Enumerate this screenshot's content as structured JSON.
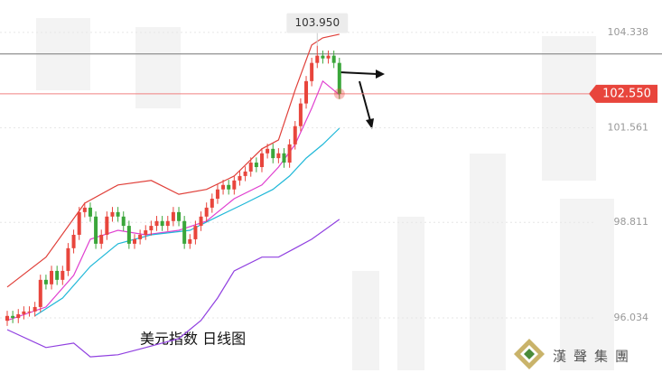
{
  "chart_data": {
    "type": "candlestick",
    "title": "美元指数  日线图",
    "logo_text": "漢聲集團",
    "ylim": [
      94.43,
      105.28
    ],
    "yticks": [
      104.338,
      101.561,
      98.811,
      96.034
    ],
    "grid": true,
    "up_color": "#e8453c",
    "down_color": "#3aa63a",
    "open": [
      95.95,
      96.09,
      96.03,
      96.14,
      96.22,
      96.22,
      96.35,
      97.14,
      97.01,
      97.4,
      97.14,
      97.4,
      98.06,
      98.45,
      99.11,
      99.24,
      98.98,
      98.19,
      98.45,
      98.98,
      99.11,
      98.98,
      98.71,
      98.19,
      98.32,
      98.45,
      98.58,
      98.71,
      98.85,
      98.71,
      98.85,
      99.11,
      98.85,
      98.19,
      98.32,
      98.71,
      98.98,
      99.24,
      99.5,
      99.77,
      99.9,
      99.77,
      100.03,
      100.16,
      100.29,
      100.55,
      100.42,
      100.82,
      100.95,
      100.68,
      100.82,
      100.55,
      101.08,
      101.61,
      102.27,
      102.92,
      103.45,
      103.66,
      103.58,
      103.66,
      103.45
    ],
    "high": [
      96.24,
      96.24,
      96.29,
      96.37,
      96.37,
      96.5,
      97.29,
      97.29,
      97.55,
      97.55,
      97.55,
      98.21,
      98.6,
      99.26,
      99.39,
      99.39,
      99.13,
      98.6,
      99.13,
      99.26,
      99.26,
      99.13,
      98.86,
      98.47,
      98.6,
      98.73,
      98.86,
      99.0,
      99.0,
      99.0,
      99.26,
      99.26,
      99.0,
      98.47,
      98.86,
      99.13,
      99.39,
      99.65,
      99.92,
      100.05,
      100.05,
      100.18,
      100.31,
      100.44,
      100.7,
      100.7,
      100.97,
      101.1,
      101.1,
      100.97,
      100.97,
      101.23,
      101.76,
      102.42,
      103.07,
      103.6,
      103.95,
      103.81,
      103.81,
      103.81,
      103.6
    ],
    "low": [
      95.8,
      95.88,
      95.88,
      95.99,
      96.07,
      96.07,
      96.2,
      96.86,
      96.86,
      96.99,
      96.99,
      97.25,
      97.91,
      98.3,
      98.96,
      98.83,
      98.04,
      98.04,
      98.3,
      98.83,
      98.83,
      98.56,
      98.04,
      98.04,
      98.17,
      98.3,
      98.43,
      98.56,
      98.56,
      98.56,
      98.7,
      98.7,
      98.04,
      98.04,
      98.17,
      98.56,
      98.83,
      99.09,
      99.35,
      99.62,
      99.62,
      99.62,
      99.88,
      100.01,
      100.14,
      100.27,
      100.27,
      100.67,
      100.53,
      100.53,
      100.4,
      100.4,
      100.93,
      101.46,
      102.12,
      102.77,
      103.3,
      103.43,
      103.43,
      103.3,
      102.4
    ],
    "close": [
      96.09,
      96.03,
      96.14,
      96.22,
      96.22,
      96.35,
      97.14,
      97.01,
      97.4,
      97.14,
      97.4,
      98.06,
      98.45,
      99.11,
      99.24,
      98.98,
      98.19,
      98.45,
      98.98,
      99.11,
      98.98,
      98.71,
      98.19,
      98.32,
      98.45,
      98.58,
      98.71,
      98.85,
      98.71,
      98.85,
      99.11,
      98.85,
      98.19,
      98.32,
      98.71,
      98.98,
      99.24,
      99.5,
      99.77,
      99.9,
      99.77,
      100.03,
      100.16,
      100.29,
      100.55,
      100.42,
      100.82,
      100.95,
      100.68,
      100.82,
      100.55,
      101.08,
      101.61,
      102.27,
      102.92,
      103.45,
      103.66,
      103.58,
      103.66,
      103.45,
      102.55
    ],
    "lines": [
      {
        "color": "#e0403a",
        "x": [
          0,
          7,
          14,
          20,
          26,
          31,
          36,
          41,
          46,
          49,
          52,
          55,
          57,
          60
        ],
        "values": [
          96.93,
          97.8,
          99.37,
          99.9,
          100.03,
          99.63,
          99.77,
          100.16,
          100.95,
          101.21,
          102.66,
          103.97,
          104.18,
          104.285
        ]
      },
      {
        "color": "#e040d0",
        "x": [
          0,
          7,
          12,
          15,
          20,
          25,
          31,
          36,
          41,
          46,
          49,
          52,
          55,
          57,
          60
        ],
        "values": [
          95.96,
          96.35,
          97.27,
          98.32,
          98.58,
          98.45,
          98.58,
          98.85,
          99.5,
          99.9,
          100.42,
          101.08,
          102.13,
          102.92,
          102.52
        ]
      },
      {
        "color": "#20b8d8",
        "x": [
          5,
          10,
          15,
          20,
          26,
          33,
          38,
          43,
          48,
          51,
          54,
          57,
          60
        ],
        "values": [
          96.09,
          96.61,
          97.53,
          98.19,
          98.45,
          98.58,
          98.98,
          99.37,
          99.77,
          100.16,
          100.68,
          101.08,
          101.55
        ]
      },
      {
        "color": "#9040e0",
        "x": [
          0,
          7,
          12,
          15,
          20,
          25,
          31,
          35,
          38,
          41,
          46,
          49,
          52,
          55,
          60
        ],
        "values": [
          95.69,
          95.17,
          95.3,
          94.9,
          94.96,
          95.17,
          95.43,
          95.96,
          96.61,
          97.4,
          97.8,
          97.8,
          98.06,
          98.32,
          98.9
        ]
      }
    ],
    "high_line": 103.71,
    "max_label": "103.950",
    "last_price": 102.55,
    "last_price_label": "102.550"
  }
}
